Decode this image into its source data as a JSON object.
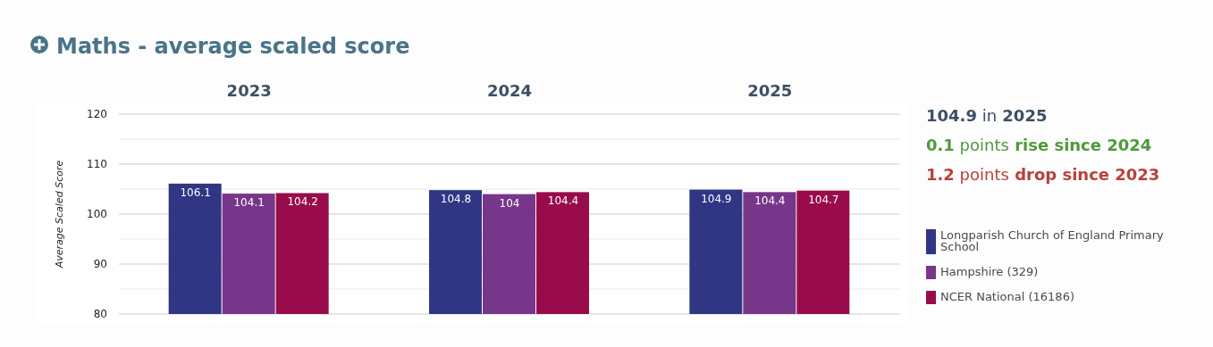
{
  "chart_data": {
    "type": "bar",
    "title": "Maths - average scaled score",
    "ylabel": "Average Scaled Score",
    "categories": [
      "2023",
      "2024",
      "2025"
    ],
    "series": [
      {
        "name": "Longparish Church of England Primary School",
        "color": "#303584",
        "values": [
          106.1,
          104.8,
          104.9
        ]
      },
      {
        "name": "Hampshire (329)",
        "color": "#77368a",
        "values": [
          104.1,
          104,
          104.4
        ]
      },
      {
        "name": "NCER National (16186)",
        "color": "#990c4c",
        "values": [
          104.2,
          104.4,
          104.7
        ]
      }
    ],
    "ylim": [
      80,
      120
    ],
    "yticks": [
      80,
      {
        "value": 85,
        "label": null
      },
      90,
      {
        "value": 95,
        "label": null
      },
      100,
      {
        "value": 105,
        "label": null
      },
      110,
      {
        "value": 115,
        "label": null
      },
      120
    ],
    "grid": true,
    "legend": "right",
    "data_labels": true,
    "annotations": [
      "104.9 in 2025",
      "0.1 points rise since 2024",
      "1.2 points drop since 2023"
    ]
  }
}
